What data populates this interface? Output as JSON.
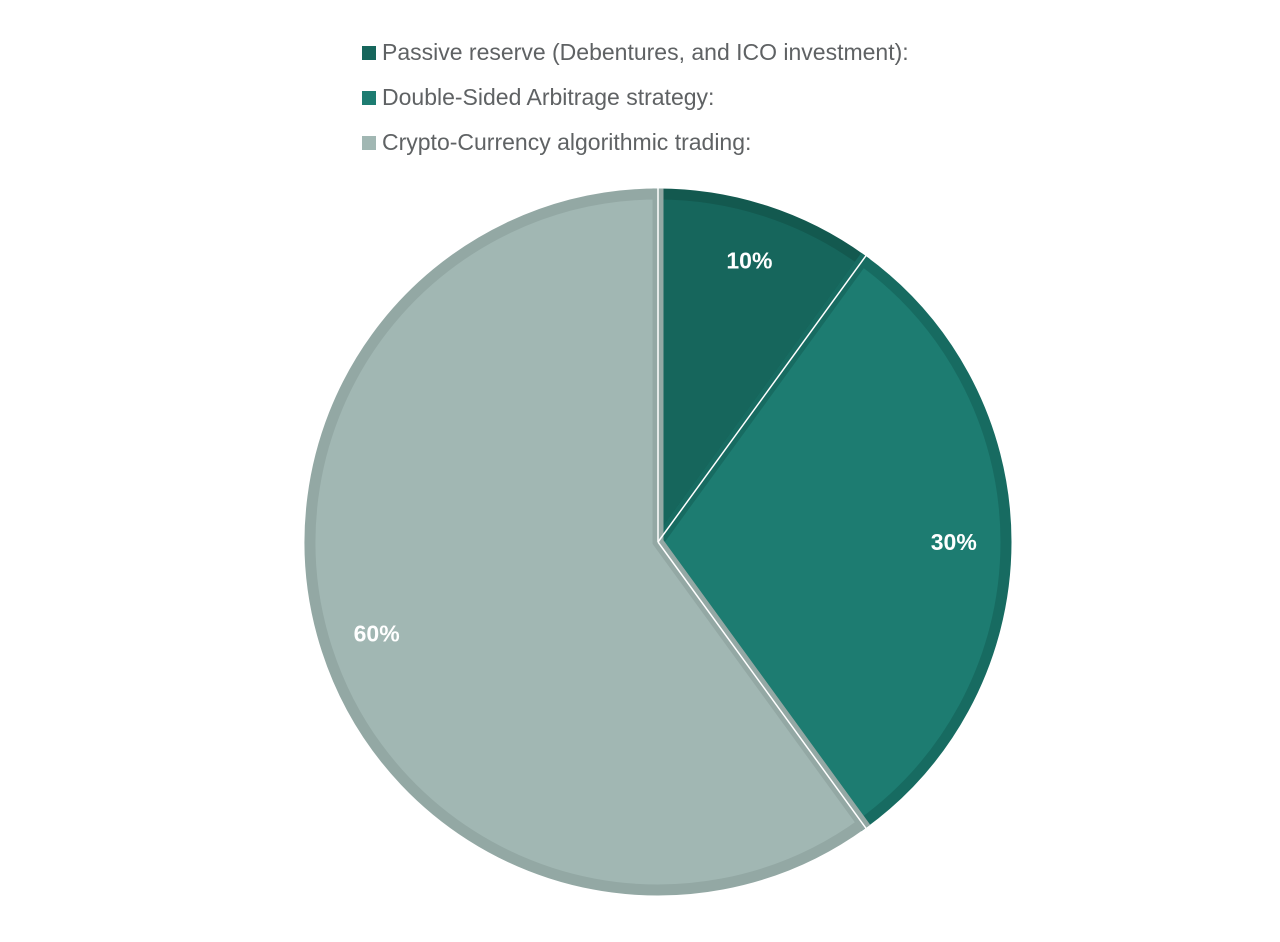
{
  "chart_data": {
    "type": "pie",
    "title": "",
    "legend_position": "top",
    "slices": [
      {
        "name": "Passive reserve (Debentures, and ICO investment):",
        "value": 10,
        "label": "10%",
        "color": "#16665c",
        "border_color": "#13594f"
      },
      {
        "name": "Double-Sided Arbitrage strategy:",
        "value": 30,
        "label": "30%",
        "color": "#1d7c71",
        "border_color": "#176b61"
      },
      {
        "name": "Crypto-Currency algorithmic trading:",
        "value": 60,
        "label": "60%",
        "color": "#a1b7b3",
        "border_color": "#93a8a4"
      }
    ]
  }
}
